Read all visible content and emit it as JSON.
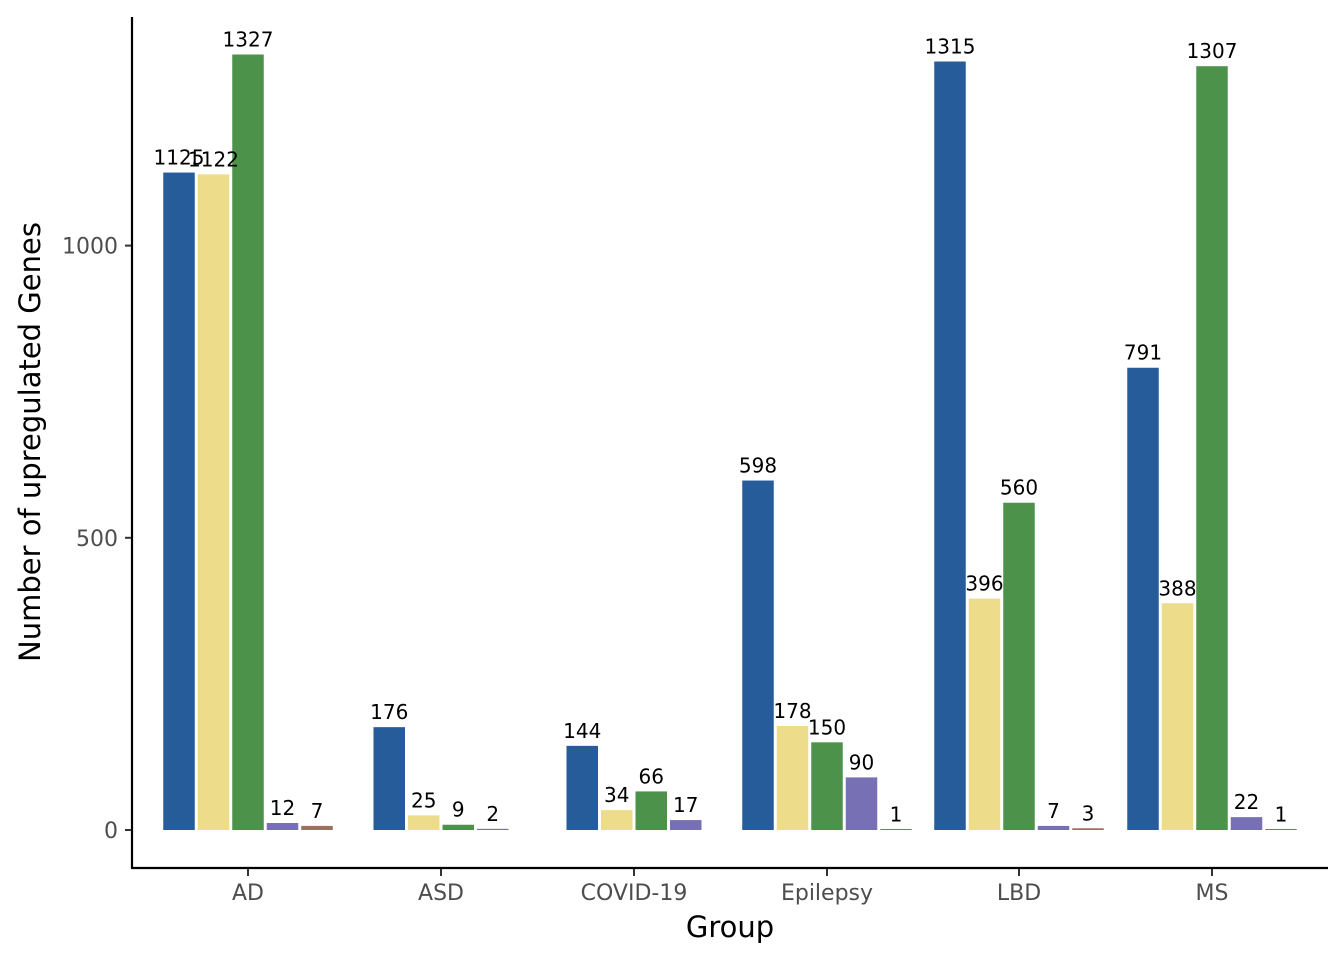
{
  "chart_data": {
    "type": "bar",
    "title": "",
    "xlabel": "Group",
    "ylabel": "Number of upregulated Genes",
    "ylim": [
      -65,
      1390
    ],
    "yticks": [
      0,
      500,
      1000
    ],
    "grid": false,
    "legend": "none",
    "groups": [
      {
        "category": "AD",
        "bars": [
          {
            "value": 1125,
            "color": "#275C9A"
          },
          {
            "value": 1122,
            "color": "#EDDC8A"
          },
          {
            "value": 1327,
            "color": "#4C924A"
          },
          {
            "value": 12,
            "color": "#7870B4"
          },
          {
            "value": 7,
            "color": "#9A7060"
          }
        ]
      },
      {
        "category": "ASD",
        "bars": [
          {
            "value": 176,
            "color": "#275C9A"
          },
          {
            "value": 25,
            "color": "#EDDC8A"
          },
          {
            "value": 9,
            "color": "#4C924A"
          },
          {
            "value": 2,
            "color": "#7870B4"
          }
        ]
      },
      {
        "category": "COVID-19",
        "bars": [
          {
            "value": 144,
            "color": "#275C9A"
          },
          {
            "value": 34,
            "color": "#EDDC8A"
          },
          {
            "value": 66,
            "color": "#4C924A"
          },
          {
            "value": 17,
            "color": "#7870B4"
          }
        ]
      },
      {
        "category": "Epilepsy",
        "bars": [
          {
            "value": 598,
            "color": "#275C9A"
          },
          {
            "value": 178,
            "color": "#EDDC8A"
          },
          {
            "value": 150,
            "color": "#4C924A"
          },
          {
            "value": 90,
            "color": "#7870B4"
          },
          {
            "value": 1,
            "color": "#9A7060"
          }
        ]
      },
      {
        "category": "LBD",
        "bars": [
          {
            "value": 1315,
            "color": "#275C9A"
          },
          {
            "value": 396,
            "color": "#EDDC8A"
          },
          {
            "value": 560,
            "color": "#4C924A"
          },
          {
            "value": 7,
            "color": "#7870B4"
          },
          {
            "value": 3,
            "color": "#9A7060"
          }
        ]
      },
      {
        "category": "MS",
        "bars": [
          {
            "value": 791,
            "color": "#275C9A"
          },
          {
            "value": 388,
            "color": "#EDDC8A"
          },
          {
            "value": 1307,
            "color": "#4C924A"
          },
          {
            "value": 22,
            "color": "#7870B4"
          },
          {
            "value": 1,
            "color": "#9A7060"
          }
        ]
      }
    ]
  }
}
